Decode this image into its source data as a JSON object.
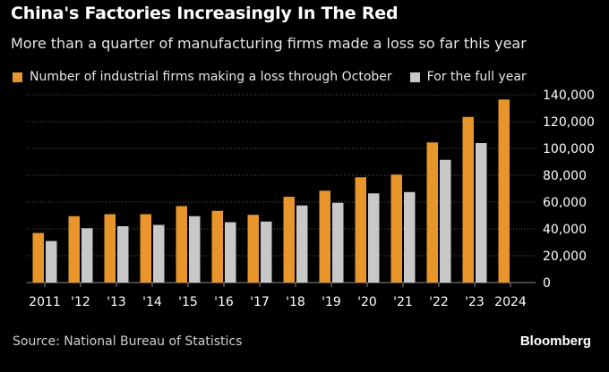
{
  "header": {
    "title": "China's Factories Increasingly In The Red",
    "subtitle": "More than a quarter of manufacturing firms made a loss so far this year"
  },
  "footer": {
    "source": "Source: National Bureau of Statistics",
    "brand": "Bloomberg"
  },
  "colors": {
    "background": "#000000",
    "series_oct": "#e8962b",
    "series_full": "#c8c8c8",
    "gridline": "#5a5a5a",
    "text": "#ffffff"
  },
  "chart_data": {
    "type": "bar",
    "title": "China's Factories Increasingly In The Red",
    "subtitle": "More than a quarter of manufacturing firms made a loss so far this year",
    "categories": [
      "2011",
      "'12",
      "'13",
      "'14",
      "'15",
      "'16",
      "'17",
      "'18",
      "'19",
      "'20",
      "'21",
      "'22",
      "'23",
      "2024"
    ],
    "series": [
      {
        "name": "Number of industrial firms making a loss through October",
        "values": [
          37000,
          49500,
          51000,
          51000,
          57000,
          53500,
          50500,
          64000,
          68500,
          78500,
          80500,
          104500,
          123500,
          136500
        ]
      },
      {
        "name": "For the full year",
        "values": [
          31000,
          40500,
          42000,
          43000,
          49500,
          45000,
          45500,
          57500,
          59500,
          66500,
          67500,
          91500,
          104000,
          null
        ]
      }
    ],
    "ylim": [
      0,
      140000
    ],
    "yticks": [
      0,
      20000,
      40000,
      60000,
      80000,
      100000,
      120000,
      140000
    ],
    "ytick_labels": [
      "0",
      "20,000",
      "40,000",
      "60,000",
      "80,000",
      "100,000",
      "120,000",
      "140,000"
    ],
    "yaxis_position": "right",
    "grid": true,
    "legend_position": "top-left"
  }
}
